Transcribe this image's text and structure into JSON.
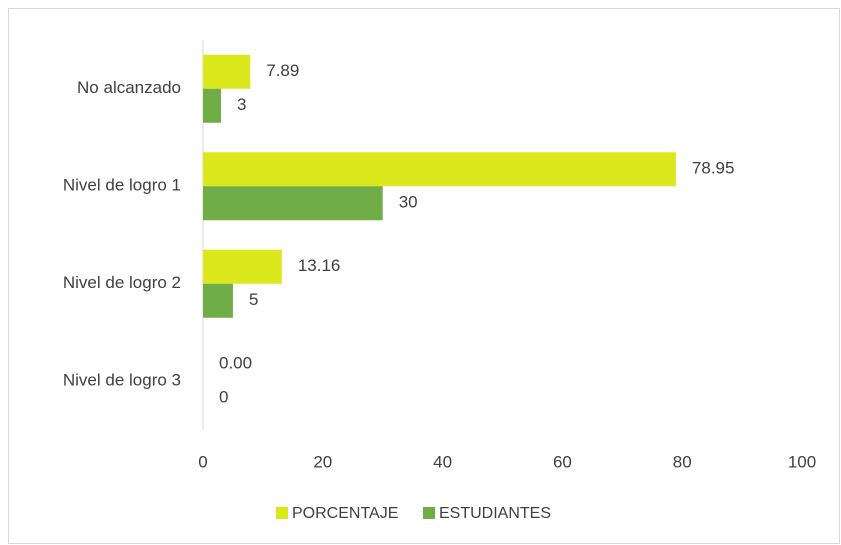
{
  "chart_data": {
    "type": "bar",
    "orientation": "horizontal",
    "categories": [
      "No alcanzado",
      "Nivel de logro 1",
      "Nivel de logro 2",
      "Nivel de logro 3"
    ],
    "series": [
      {
        "name": "PORCENTAJE",
        "color": "#dbe91c",
        "values": [
          7.89,
          78.95,
          13.16,
          0
        ],
        "value_labels": [
          "7.89",
          "78.95",
          "13.16",
          "0.00"
        ]
      },
      {
        "name": "ESTUDIANTES",
        "color": "#70ad47",
        "values": [
          3,
          30,
          5,
          0
        ]
      }
    ],
    "xlim": [
      0,
      100
    ],
    "xticks": [
      0,
      20,
      40,
      60,
      80,
      100
    ],
    "grid": false,
    "legend": "bottom"
  }
}
